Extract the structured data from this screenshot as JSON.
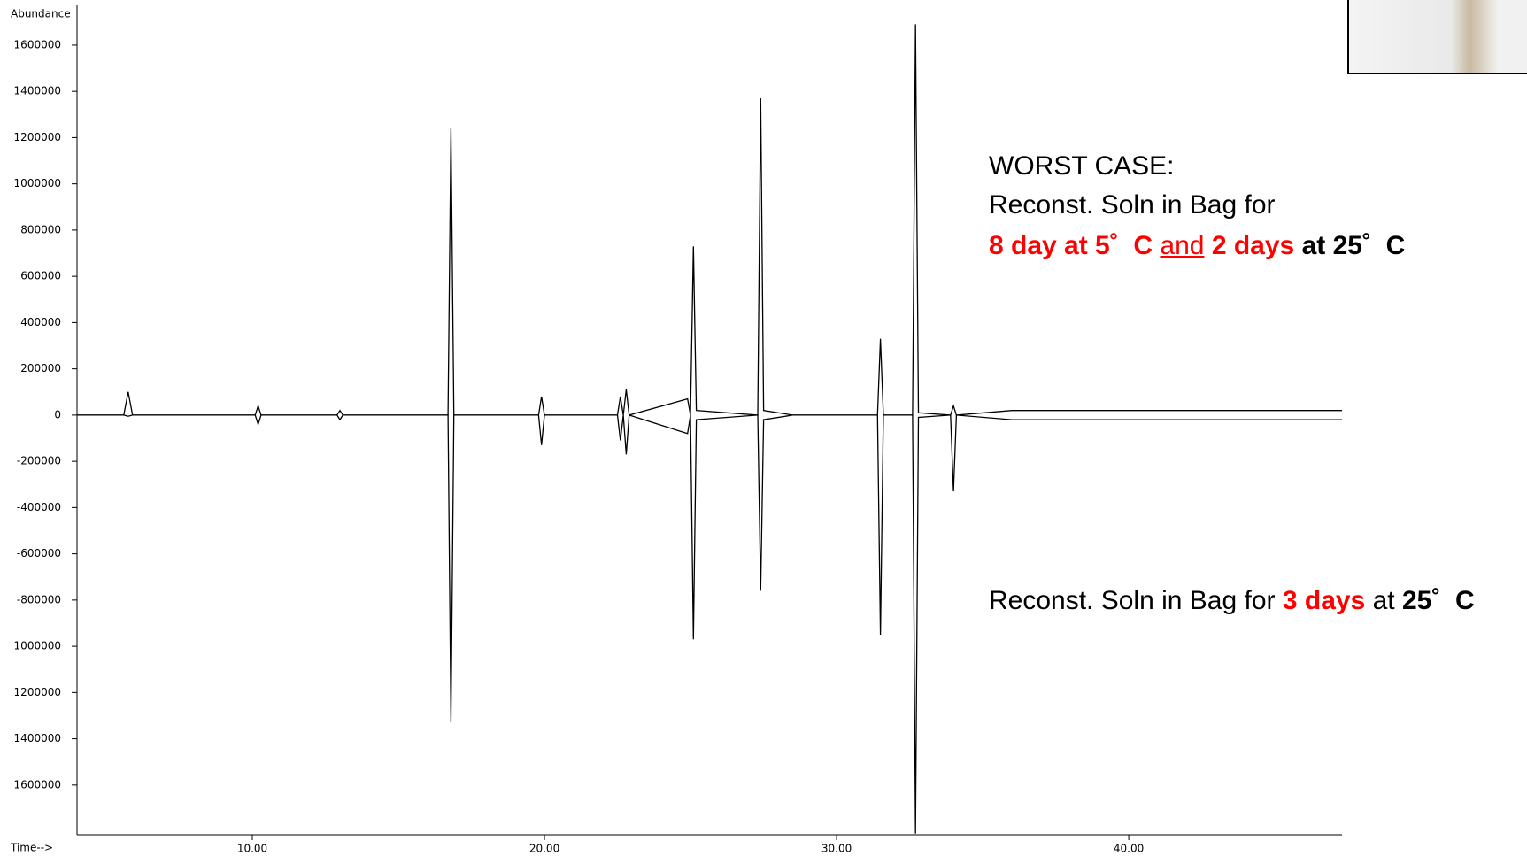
{
  "chart_data": {
    "type": "line",
    "y_label": "Abundance",
    "x_label": "Time-->",
    "x": [
      4.0,
      5.6,
      5.75,
      5.9,
      10.1,
      10.2,
      10.3,
      12.9,
      13.0,
      13.1,
      16.7,
      16.8,
      16.9,
      19.8,
      19.9,
      20.0,
      22.5,
      22.6,
      22.7,
      22.8,
      22.9,
      24.9,
      25.0,
      25.1,
      25.2,
      27.3,
      27.4,
      27.5,
      28.5,
      31.4,
      31.5,
      31.6,
      32.6,
      32.7,
      32.8,
      33.9,
      34.0,
      34.1,
      36.0,
      47.3
    ],
    "series": [
      {
        "color": "#000000",
        "values": [
          0,
          0,
          100000,
          0,
          0,
          40000,
          0,
          0,
          20000,
          0,
          0,
          1240000,
          0,
          0,
          80000,
          0,
          0,
          80000,
          0,
          110000,
          0,
          70000,
          0,
          730000,
          20000,
          0,
          1370000,
          20000,
          0,
          0,
          330000,
          0,
          0,
          1690000,
          10000,
          0,
          40000,
          0,
          20000,
          20000
        ]
      },
      {
        "color": "#000000",
        "values": [
          0,
          0,
          -5000,
          0,
          0,
          -40000,
          0,
          0,
          -20000,
          0,
          0,
          -1330000,
          0,
          0,
          -130000,
          0,
          0,
          -110000,
          0,
          -170000,
          0,
          -80000,
          0,
          -970000,
          -20000,
          0,
          -760000,
          -20000,
          0,
          0,
          -950000,
          0,
          0,
          -1810000,
          -10000,
          0,
          -330000,
          0,
          -20000,
          -20000
        ]
      }
    ],
    "xlim": [
      4.0,
      47.3
    ],
    "ylim": [
      -1815000,
      1772000
    ],
    "xticks": [
      {
        "value": 10,
        "label": "10.00"
      },
      {
        "value": 20,
        "label": "20.00"
      },
      {
        "value": 30,
        "label": "30.00"
      },
      {
        "value": 40,
        "label": "40.00"
      }
    ],
    "yticks": [
      1600000,
      1400000,
      1200000,
      1000000,
      800000,
      600000,
      400000,
      200000,
      0,
      -200000,
      -400000,
      -600000,
      -800000,
      {
        "value": -1000000,
        "label": "1000000"
      },
      {
        "value": -1200000,
        "label": "1200000"
      },
      {
        "value": -1400000,
        "label": "1400000"
      },
      {
        "value": -1600000,
        "label": "1600000"
      }
    ]
  },
  "annotations": [
    [
      {
        "text": "WORST CASE:",
        "color": "#000000"
      }
    ],
    [
      {
        "text": "Reconst. Soln in Bag for",
        "color": "#000000"
      }
    ],
    [
      {
        "text": "8 day at 5˚  C",
        "color": "#ff0000",
        "bold": true
      },
      {
        "text": " ",
        "color": "#000000"
      },
      {
        "text": "and",
        "color": "#ff0000",
        "underline": true
      },
      {
        "text": " ",
        "color": "#000000"
      },
      {
        "text": "2 days",
        "color": "#ff0000",
        "bold": true
      },
      {
        "text": " at 25˚  C",
        "color": "#000000",
        "bold": true
      }
    ],
    [
      {
        "text": "Reconst. Soln in Bag for ",
        "color": "#000000"
      },
      {
        "text": "3 days",
        "color": "#ff0000",
        "bold": true
      },
      {
        "text": " at ",
        "color": "#000000"
      },
      {
        "text": "25˚  C",
        "color": "#000000",
        "bold": true
      }
    ]
  ]
}
